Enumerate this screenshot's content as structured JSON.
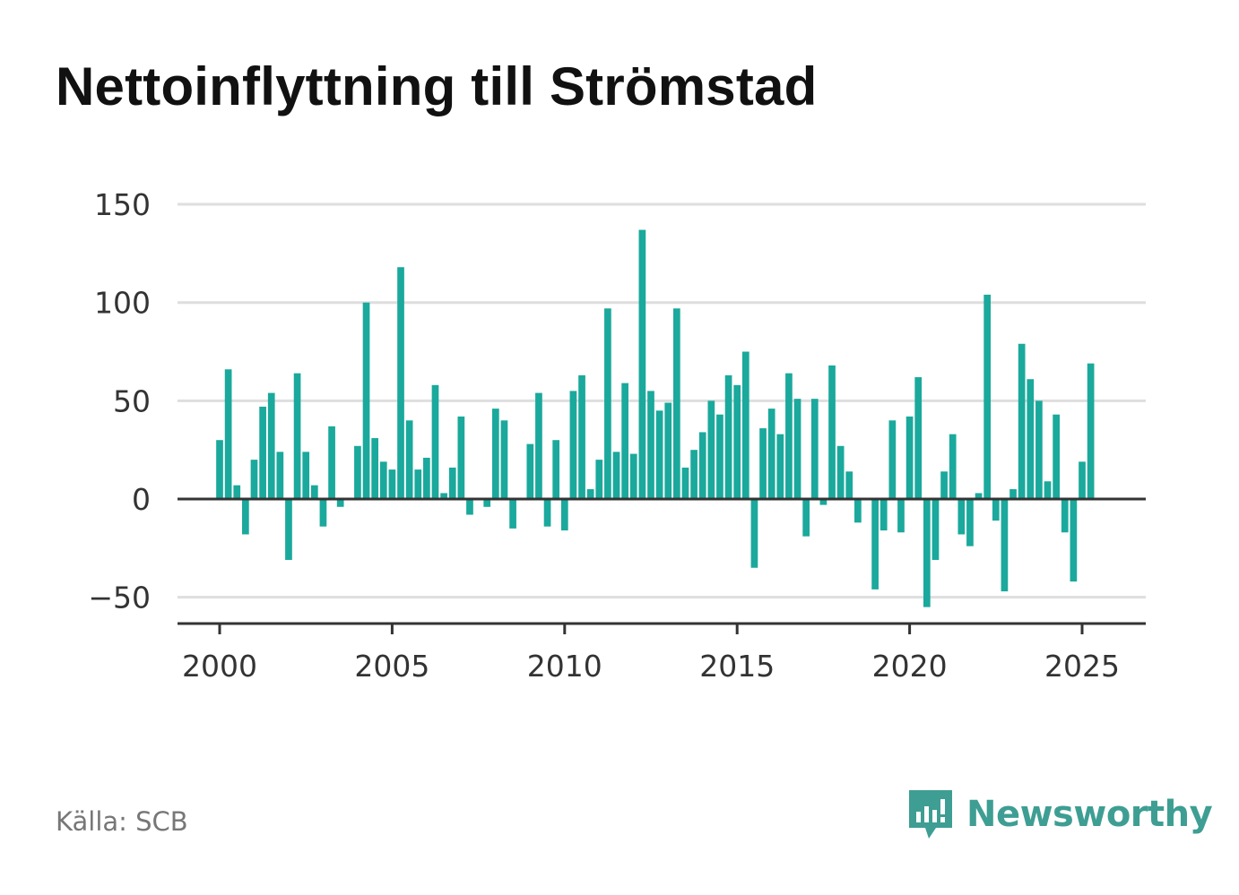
{
  "title": "Nettoinflyttning till Strömstad",
  "source": "Källa: SCB",
  "brand": "Newsworthy",
  "colors": {
    "bar": "#1aa99c",
    "grid": "#dedede",
    "axis": "#333333",
    "brand": "#3e9e93"
  },
  "icons": {
    "brand_logo": "newsworthy-logo-icon"
  },
  "chart_data": {
    "type": "bar",
    "title": "Nettoinflyttning till Strömstad",
    "xlabel": "",
    "ylabel": "",
    "ylim": [
      -62,
      150
    ],
    "xlim": [
      1999.3,
      2027.0
    ],
    "y_ticks": [
      {
        "value": 150,
        "label": "150"
      },
      {
        "value": 100,
        "label": "100"
      },
      {
        "value": 50,
        "label": "50"
      },
      {
        "value": 0,
        "label": "0"
      },
      {
        "value": -50,
        "label": "−50"
      }
    ],
    "x_ticks": [
      {
        "value": 2000,
        "label": "2000"
      },
      {
        "value": 2005,
        "label": "2005"
      },
      {
        "value": 2010,
        "label": "2010"
      },
      {
        "value": 2015,
        "label": "2015"
      },
      {
        "value": 2020,
        "label": "2020"
      },
      {
        "value": 2025,
        "label": "2025"
      }
    ],
    "grid": true,
    "start_year": 2000,
    "periods_per_year": 4,
    "values": [
      30,
      66,
      7,
      -18,
      20,
      47,
      54,
      24,
      -31,
      64,
      24,
      7,
      -14,
      37,
      -4,
      0,
      27,
      100,
      31,
      19,
      15,
      118,
      40,
      15,
      21,
      58,
      3,
      16,
      42,
      -8,
      0,
      -4,
      46,
      40,
      -15,
      0,
      28,
      54,
      -14,
      30,
      -16,
      55,
      63,
      5,
      20,
      97,
      24,
      59,
      23,
      137,
      55,
      45,
      49,
      97,
      16,
      25,
      34,
      50,
      43,
      63,
      58,
      75,
      -35,
      36,
      46,
      33,
      64,
      51,
      -19,
      51,
      -3,
      68,
      27,
      14,
      -12,
      0,
      -46,
      -16,
      40,
      -17,
      42,
      62,
      -55,
      -31,
      14,
      33,
      -18,
      -24,
      3,
      104,
      -11,
      -47,
      5,
      79,
      61,
      50,
      9,
      43,
      -17,
      -42,
      19,
      69
    ]
  }
}
